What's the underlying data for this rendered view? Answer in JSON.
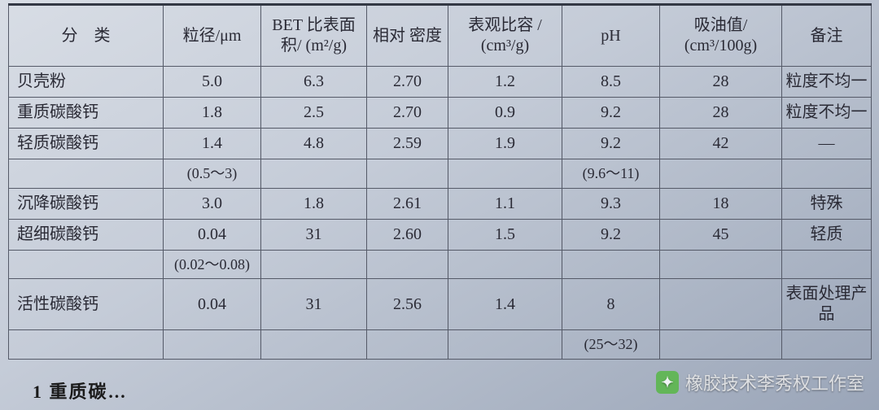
{
  "table": {
    "headers": {
      "category": "分　类",
      "particle": "粒径/μm",
      "bet": "BET 比表面积/ (m²/g)",
      "density": "相对\n密度",
      "volume": "表观比容\n/ (cm³/g)",
      "ph": "pH",
      "oil": "吸油值/\n(cm³/100g)",
      "note": "备注"
    },
    "rows": [
      {
        "cat": "贝壳粉",
        "size": "5.0",
        "bet": "6.3",
        "dens": "2.70",
        "vol": "1.2",
        "ph": "8.5",
        "oil": "28",
        "note": "粒度不均一"
      },
      {
        "cat": "重质碳酸钙",
        "size": "1.8",
        "bet": "2.5",
        "dens": "2.70",
        "vol": "0.9",
        "ph": "9.2",
        "oil": "28",
        "note": "粒度不均一"
      },
      {
        "cat": "轻质碳酸钙",
        "size": "1.4",
        "bet": "4.8",
        "dens": "2.59",
        "vol": "1.9",
        "ph": "9.2",
        "oil": "42",
        "note": "—"
      },
      {
        "cat": "",
        "size": "(0.5～3)",
        "bet": "",
        "dens": "",
        "vol": "",
        "ph": "(9.6～11)",
        "oil": "",
        "note": ""
      },
      {
        "cat": "沉降碳酸钙",
        "size": "3.0",
        "bet": "1.8",
        "dens": "2.61",
        "vol": "1.1",
        "ph": "9.3",
        "oil": "18",
        "note": "特殊"
      },
      {
        "cat": "超细碳酸钙",
        "size": "0.04",
        "bet": "31",
        "dens": "2.60",
        "vol": "1.5",
        "ph": "9.2",
        "oil": "45",
        "note": "轻质"
      },
      {
        "cat": "",
        "size": "(0.02～0.08)",
        "bet": "",
        "dens": "",
        "vol": "",
        "ph": "",
        "oil": "",
        "note": ""
      },
      {
        "cat": "活性碳酸钙",
        "size": "0.04",
        "bet": "31",
        "dens": "2.56",
        "vol": "1.4",
        "ph": "8",
        "oil": "",
        "note": "表面处理产品"
      },
      {
        "cat": "",
        "size": "",
        "bet": "",
        "dens": "",
        "vol": "",
        "ph": "(25～32)",
        "oil": "",
        "note": ""
      }
    ]
  },
  "watermark": "橡胶技术李秀权工作室",
  "footnote": "1  重质碳…",
  "colors": {
    "border": "#555a68",
    "text": "#2a2a35"
  }
}
